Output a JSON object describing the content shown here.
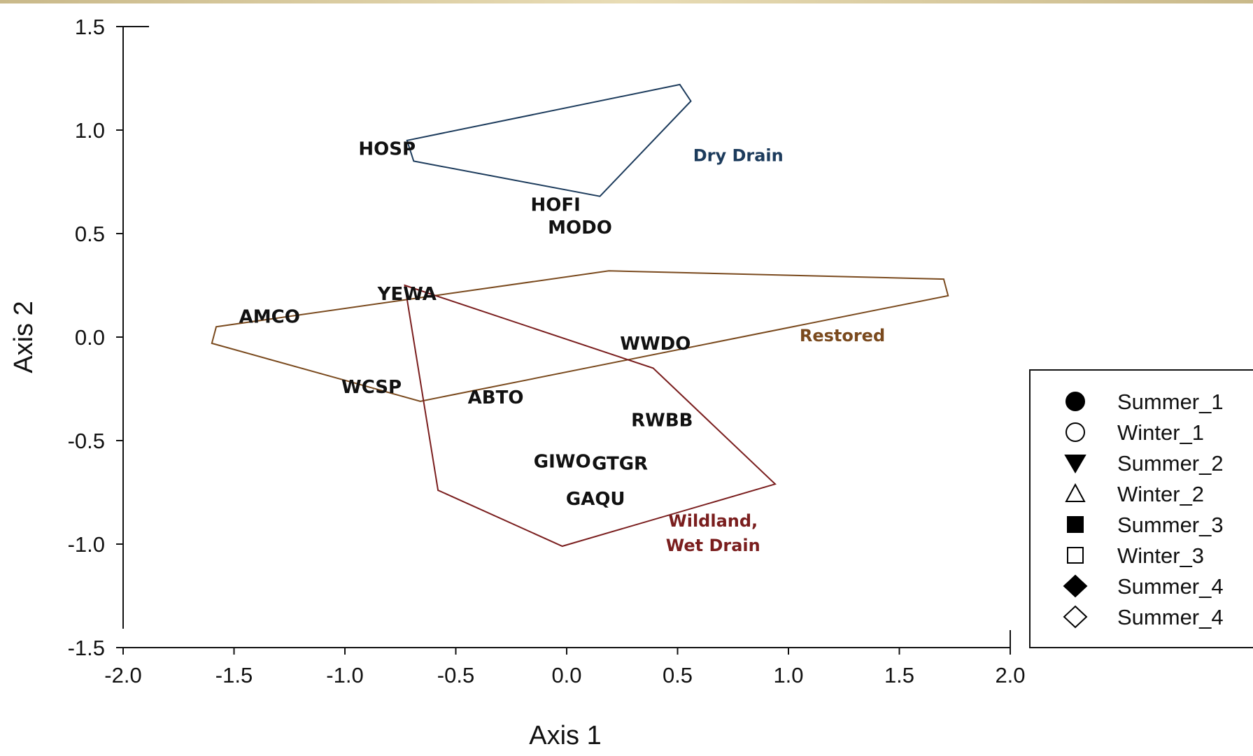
{
  "chart_data": {
    "type": "scatter",
    "xlabel": "Axis 1",
    "ylabel": "Axis 2",
    "xlim": [
      -2.0,
      2.0
    ],
    "ylim": [
      -1.5,
      1.5
    ],
    "xticks": [
      "-2.0",
      "-1.5",
      "-1.0",
      "-0.5",
      "0.0",
      "0.5",
      "1.0",
      "1.5",
      "2.0"
    ],
    "yticks": [
      "1.5",
      "1.0",
      "0.5",
      "0.0",
      "-0.5",
      "-1.0",
      "-1.5"
    ],
    "grid": false,
    "species": [
      {
        "label": "HOSP",
        "x": -0.81,
        "y": 0.91
      },
      {
        "label": "HOFI",
        "x": -0.05,
        "y": 0.64
      },
      {
        "label": "MODO",
        "x": 0.06,
        "y": 0.53
      },
      {
        "label": "YEWA",
        "x": -0.72,
        "y": 0.21
      },
      {
        "label": "AMCO",
        "x": -1.34,
        "y": 0.1
      },
      {
        "label": "WWDO",
        "x": 0.4,
        "y": -0.03
      },
      {
        "label": "WCSP",
        "x": -0.88,
        "y": -0.24
      },
      {
        "label": "ABTO",
        "x": -0.32,
        "y": -0.29
      },
      {
        "label": "RWBB",
        "x": 0.43,
        "y": -0.4
      },
      {
        "label": "GIWO",
        "x": -0.02,
        "y": -0.6
      },
      {
        "label": "GTGR",
        "x": 0.24,
        "y": -0.61
      },
      {
        "label": "GAQU",
        "x": 0.13,
        "y": -0.78
      }
    ],
    "groups": [
      {
        "name": "Dry Drain",
        "color": "#1c3b5c",
        "hull": [
          [
            -0.72,
            0.95
          ],
          [
            0.51,
            1.22
          ],
          [
            0.56,
            1.14
          ],
          [
            0.15,
            0.68
          ],
          [
            -0.69,
            0.85
          ]
        ],
        "label_lines": [
          "Dry Drain"
        ]
      },
      {
        "name": "Restored",
        "color": "#7a4a1e",
        "hull": [
          [
            -1.58,
            0.05
          ],
          [
            0.19,
            0.32
          ],
          [
            1.7,
            0.28
          ],
          [
            1.72,
            0.2
          ],
          [
            -0.66,
            -0.31
          ],
          [
            -1.6,
            -0.03
          ]
        ],
        "label_lines": [
          "Restored"
        ]
      },
      {
        "name": "Wildland, Wet Drain",
        "color": "#7a1e1e",
        "hull": [
          [
            -0.73,
            0.25
          ],
          [
            0.39,
            -0.15
          ],
          [
            0.94,
            -0.71
          ],
          [
            -0.02,
            -1.01
          ],
          [
            -0.58,
            -0.74
          ]
        ],
        "label_lines": [
          "Wildland,",
          "Wet Drain"
        ]
      }
    ],
    "legend": {
      "placement": "right",
      "entries": [
        {
          "label": "Summer_1",
          "marker": "filled-circle"
        },
        {
          "label": "Winter_1",
          "marker": "open-circle"
        },
        {
          "label": "Summer_2",
          "marker": "filled-triangle-down"
        },
        {
          "label": "Winter_2",
          "marker": "open-triangle-up"
        },
        {
          "label": "Summer_3",
          "marker": "filled-square"
        },
        {
          "label": "Winter_3",
          "marker": "open-square"
        },
        {
          "label": "Summer_4",
          "marker": "filled-diamond"
        },
        {
          "label": "Summer_4",
          "marker": "open-diamond"
        }
      ]
    }
  }
}
